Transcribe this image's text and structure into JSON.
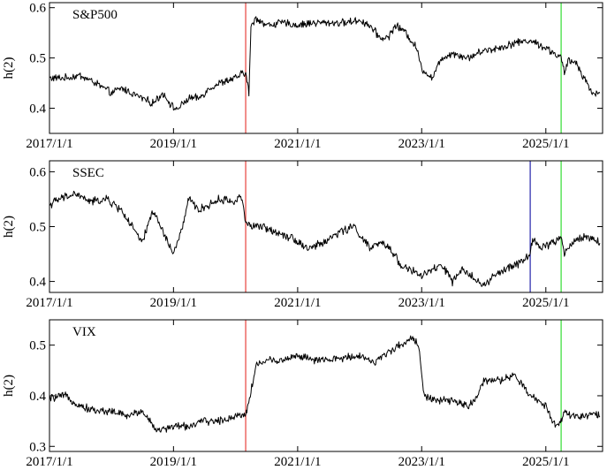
{
  "chart_data": [
    {
      "type": "line",
      "annotation": "S&P500",
      "ylabel": "h(2)",
      "xlim": [
        "2017/1/1",
        "2025/12/1"
      ],
      "ylim": [
        0.35,
        0.61
      ],
      "yticks": [
        0.4,
        0.5,
        0.6
      ],
      "ytick_labels": [
        "0.4",
        "0.5",
        "0.6"
      ],
      "xticks": [
        "2017/1/1",
        "2019/1/1",
        "2021/1/1",
        "2023/1/1",
        "2025/1/1"
      ],
      "xtick_labels": [
        "2017/1/1",
        "2019/1/1",
        "2021/1/1",
        "2023/1/1",
        "2025/1/1"
      ],
      "grid": false,
      "vlines": [
        {
          "x": "2020/3/1",
          "color": "#e8413c"
        },
        {
          "x": "2025/4/1",
          "color": "#33dd33"
        }
      ],
      "series": [
        {
          "color": "#000000",
          "x": [
            "2017/1/1",
            "2017/4/1",
            "2017/7/1",
            "2017/10/1",
            "2018/1/1",
            "2018/3/1",
            "2018/5/1",
            "2018/7/1",
            "2018/9/1",
            "2018/11/1",
            "2019/1/1",
            "2019/2/1",
            "2019/4/1",
            "2019/6/1",
            "2019/8/1",
            "2019/10/1",
            "2020/1/1",
            "2020/2/15",
            "2020/3/1",
            "2020/3/20",
            "2020/4/1",
            "2020/5/1",
            "2020/7/1",
            "2020/10/1",
            "2021/1/1",
            "2021/4/1",
            "2021/7/1",
            "2021/10/1",
            "2022/1/1",
            "2022/3/1",
            "2022/5/1",
            "2022/6/15",
            "2022/8/1",
            "2022/10/1",
            "2022/12/1",
            "2023/1/1",
            "2023/3/1",
            "2023/5/1",
            "2023/7/1",
            "2023/10/1",
            "2024/1/1",
            "2024/4/1",
            "2024/7/1",
            "2024/10/1",
            "2025/1/1",
            "2025/2/15",
            "2025/4/1",
            "2025/4/20",
            "2025/5/15",
            "2025/7/1",
            "2025/8/15",
            "2025/10/1",
            "2025/11/15"
          ],
          "y": [
            0.46,
            0.46,
            0.465,
            0.45,
            0.43,
            0.44,
            0.43,
            0.42,
            0.41,
            0.43,
            0.4,
            0.4,
            0.42,
            0.42,
            0.44,
            0.45,
            0.46,
            0.47,
            0.47,
            0.43,
            0.56,
            0.58,
            0.565,
            0.57,
            0.565,
            0.57,
            0.57,
            0.57,
            0.575,
            0.565,
            0.54,
            0.54,
            0.565,
            0.55,
            0.52,
            0.48,
            0.46,
            0.5,
            0.51,
            0.5,
            0.515,
            0.52,
            0.53,
            0.535,
            0.52,
            0.51,
            0.5,
            0.47,
            0.495,
            0.49,
            0.46,
            0.43,
            0.43
          ]
        }
      ]
    },
    {
      "type": "line",
      "annotation": "SSEC",
      "ylabel": "h(2)",
      "xlim": [
        "2017/1/1",
        "2025/12/1"
      ],
      "ylim": [
        0.38,
        0.62
      ],
      "yticks": [
        0.4,
        0.5,
        0.6
      ],
      "ytick_labels": [
        "0.4",
        "0.5",
        "0.6"
      ],
      "xticks": [
        "2017/1/1",
        "2019/1/1",
        "2021/1/1",
        "2023/1/1",
        "2025/1/1"
      ],
      "xtick_labels": [
        "2017/1/1",
        "2019/1/1",
        "2021/1/1",
        "2023/1/1",
        "2025/1/1"
      ],
      "grid": false,
      "vlines": [
        {
          "x": "2020/3/1",
          "color": "#e8413c"
        },
        {
          "x": "2024/10/1",
          "color": "#2222aa"
        },
        {
          "x": "2025/4/1",
          "color": "#33dd33"
        }
      ],
      "series": [
        {
          "color": "#000000",
          "x": [
            "2017/1/1",
            "2017/3/1",
            "2017/6/1",
            "2017/9/1",
            "2017/12/1",
            "2018/3/1",
            "2018/5/1",
            "2018/7/1",
            "2018/9/1",
            "2018/11/1",
            "2019/1/1",
            "2019/2/15",
            "2019/4/1",
            "2019/6/1",
            "2019/8/1",
            "2019/10/1",
            "2020/1/1",
            "2020/2/1",
            "2020/3/1",
            "2020/4/1",
            "2020/6/1",
            "2020/9/1",
            "2020/12/1",
            "2021/3/1",
            "2021/6/1",
            "2021/9/1",
            "2021/12/1",
            "2022/3/1",
            "2022/5/1",
            "2022/7/1",
            "2022/9/1",
            "2022/11/1",
            "2023/1/1",
            "2023/3/1",
            "2023/5/1",
            "2023/7/1",
            "2023/9/1",
            "2023/11/1",
            "2024/1/1",
            "2024/3/1",
            "2024/5/1",
            "2024/7/1",
            "2024/9/1",
            "2024/10/1",
            "2024/10/15",
            "2024/12/1",
            "2025/2/1",
            "2025/4/1",
            "2025/4/20",
            "2025/6/1",
            "2025/8/1",
            "2025/10/1",
            "2025/11/15"
          ],
          "y": [
            0.54,
            0.55,
            0.56,
            0.545,
            0.55,
            0.53,
            0.5,
            0.47,
            0.53,
            0.49,
            0.45,
            0.49,
            0.55,
            0.53,
            0.54,
            0.55,
            0.545,
            0.56,
            0.51,
            0.5,
            0.5,
            0.49,
            0.48,
            0.46,
            0.47,
            0.49,
            0.5,
            0.46,
            0.47,
            0.46,
            0.43,
            0.42,
            0.41,
            0.42,
            0.43,
            0.4,
            0.42,
            0.41,
            0.39,
            0.41,
            0.42,
            0.43,
            0.44,
            0.45,
            0.48,
            0.46,
            0.47,
            0.48,
            0.45,
            0.47,
            0.48,
            0.48,
            0.47
          ]
        }
      ]
    },
    {
      "type": "line",
      "annotation": "VIX",
      "ylabel": "h(2)",
      "xlim": [
        "2017/1/1",
        "2025/12/1"
      ],
      "ylim": [
        0.29,
        0.55
      ],
      "yticks": [
        0.3,
        0.4,
        0.5
      ],
      "ytick_labels": [
        "0.3",
        "0.4",
        "0.5"
      ],
      "xticks": [
        "2017/1/1",
        "2019/1/1",
        "2021/1/1",
        "2023/1/1",
        "2025/1/1"
      ],
      "xtick_labels": [
        "2017/1/1",
        "2019/1/1",
        "2021/1/1",
        "2023/1/1",
        "2025/1/1"
      ],
      "grid": false,
      "vlines": [
        {
          "x": "2020/3/1",
          "color": "#e8413c"
        },
        {
          "x": "2025/4/1",
          "color": "#33dd33"
        }
      ],
      "series": [
        {
          "color": "#000000",
          "x": [
            "2017/1/1",
            "2017/4/1",
            "2017/7/1",
            "2017/10/1",
            "2018/1/1",
            "2018/4/1",
            "2018/7/1",
            "2018/10/1",
            "2019/1/1",
            "2019/4/1",
            "2019/7/1",
            "2019/10/1",
            "2020/1/1",
            "2020/3/1",
            "2020/3/15",
            "2020/5/1",
            "2020/7/1",
            "2020/10/1",
            "2021/1/1",
            "2021/4/1",
            "2021/7/1",
            "2021/10/1",
            "2022/1/1",
            "2022/4/1",
            "2022/7/1",
            "2022/9/1",
            "2022/11/1",
            "2022/12/15",
            "2023/1/15",
            "2023/4/1",
            "2023/7/1",
            "2023/10/1",
            "2023/12/1",
            "2024/1/1",
            "2024/4/1",
            "2024/7/1",
            "2024/10/1",
            "2025/1/1",
            "2025/3/1",
            "2025/4/1",
            "2025/4/20",
            "2025/6/1",
            "2025/8/1",
            "2025/10/1",
            "2025/11/15"
          ],
          "y": [
            0.395,
            0.4,
            0.38,
            0.37,
            0.37,
            0.36,
            0.37,
            0.33,
            0.34,
            0.34,
            0.35,
            0.35,
            0.36,
            0.365,
            0.38,
            0.46,
            0.47,
            0.47,
            0.48,
            0.47,
            0.47,
            0.475,
            0.48,
            0.465,
            0.49,
            0.5,
            0.515,
            0.5,
            0.4,
            0.39,
            0.39,
            0.38,
            0.4,
            0.43,
            0.43,
            0.44,
            0.4,
            0.38,
            0.34,
            0.35,
            0.37,
            0.36,
            0.36,
            0.365,
            0.36
          ]
        }
      ]
    }
  ]
}
